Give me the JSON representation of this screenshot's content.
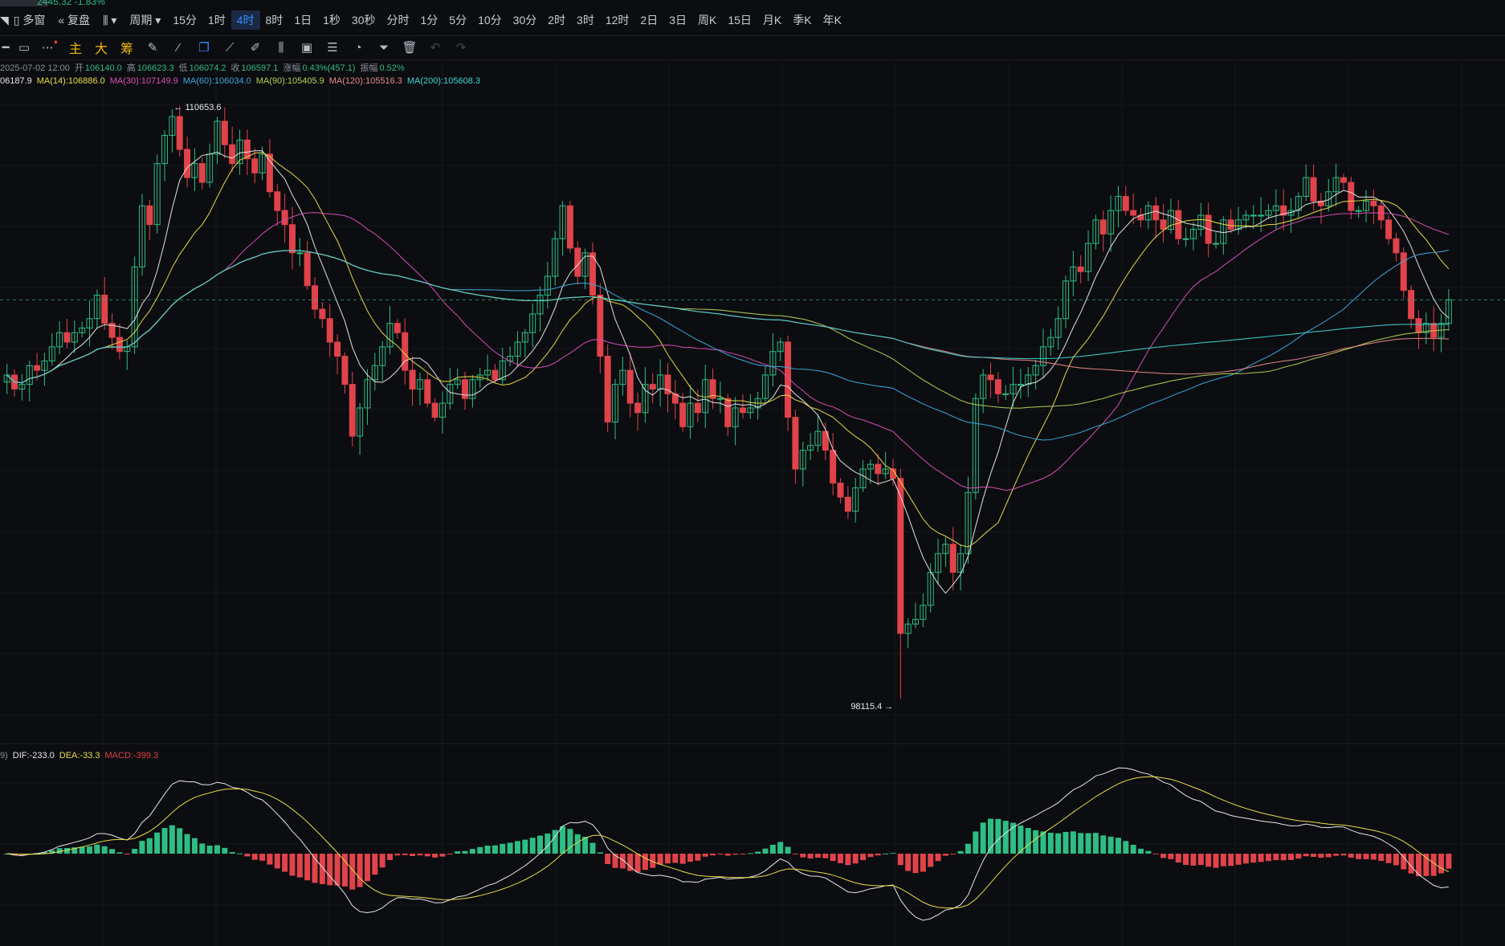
{
  "top": {
    "stub_text": "2445.32 -1.83%",
    "btn_multi": "多窗",
    "btn_fq": "复盘",
    "btn_period": "周期",
    "timeframes": [
      "15分",
      "1时",
      "4时",
      "8时",
      "1日",
      "1秒",
      "30秒",
      "分时",
      "1分",
      "5分",
      "10分",
      "30分",
      "2时",
      "3时",
      "12时",
      "2日",
      "3日",
      "周K",
      "15日",
      "月K",
      "季K",
      "年K"
    ],
    "active": "4时"
  },
  "toolbar": {
    "zhu": "主",
    "da": "大",
    "chou": "筹"
  },
  "info": {
    "date": "2025-07-02 12:00",
    "open_label": "开",
    "open": "106140.0",
    "high_label": "高",
    "high": "106623.3",
    "low_label": "低",
    "low": "106074.2",
    "close_label": "收",
    "close": "106597.1",
    "chg_label": "涨幅",
    "chg": "0.43%(457.1)",
    "amp_label": "振幅",
    "amp": "0.52%"
  },
  "ma": {
    "ma7": "06187.9",
    "ma14": "MA(14):106886.0",
    "ma30": "MA(30):107149.9",
    "ma60": "MA(60):106034.0",
    "ma90": "MA(90):105405.9",
    "ma120": "MA(120):105516.3",
    "ma200": "MA(200):105608.3"
  },
  "macd": {
    "prefix": "9)",
    "dif": "DIF:-233.0",
    "dea": "DEA:-33.3",
    "macd": "MACD:-399.3"
  },
  "colors": {
    "up": "#2ebd85",
    "down": "#e0434a",
    "ma7": "#e6e6e6",
    "ma14": "#e8dd48",
    "ma30": "#d94fb6",
    "ma60": "#3ba7e0",
    "ma90": "#b5cf52",
    "ma120": "#e88a8a",
    "ma200": "#3fd4d4"
  },
  "chart_data": {
    "type": "candlestick",
    "high_label": "110653.6",
    "low_label": "98115.4",
    "y_range": [
      97600,
      111100
    ],
    "closes": [
      105000,
      104700,
      104800,
      105200,
      105100,
      105300,
      105600,
      105900,
      105700,
      105900,
      106000,
      106200,
      106700,
      106100,
      105800,
      105500,
      105600,
      107300,
      108600,
      108200,
      109500,
      110100,
      110500,
      109800,
      109200,
      109500,
      109100,
      109700,
      110400,
      109900,
      109500,
      110000,
      109600,
      109300,
      109700,
      108900,
      108500,
      108200,
      107600,
      107600,
      106900,
      106400,
      106200,
      105700,
      105400,
      104800,
      103700,
      104300,
      104900,
      105200,
      105600,
      106100,
      105900,
      105100,
      104700,
      104900,
      104400,
      104100,
      104400,
      104800,
      104900,
      104500,
      104900,
      105000,
      105100,
      104900,
      105300,
      105400,
      105700,
      105900,
      106300,
      106700,
      107100,
      107900,
      108600,
      107700,
      107100,
      107600,
      106700,
      105400,
      104000,
      104800,
      105100,
      104400,
      104200,
      104800,
      104700,
      105000,
      104600,
      104400,
      103900,
      104400,
      104200,
      104900,
      104500,
      104500,
      103900,
      104300,
      104200,
      104300,
      104500,
      105000,
      105500,
      105700,
      104100,
      103000,
      103400,
      103500,
      103800,
      103400,
      102700,
      102400,
      102100,
      102600,
      103000,
      103100,
      102900,
      103000,
      102800,
      99500,
      99700,
      99800,
      100100,
      100800,
      101200,
      101400,
      100800,
      101200,
      102500,
      104500,
      105000,
      104900,
      104600,
      104600,
      104800,
      104800,
      105000,
      105200,
      105600,
      105800,
      106200,
      107000,
      107300,
      107200,
      107800,
      108300,
      108000,
      108500,
      108800,
      108500,
      108400,
      108300,
      108600,
      108300,
      108100,
      108500,
      107900,
      107900,
      108100,
      108400,
      107800,
      107800,
      108300,
      108100,
      108300,
      108400,
      108400,
      108400,
      108500,
      108600,
      108400,
      108500,
      108800,
      109200,
      108700,
      108600,
      108900,
      109200,
      109100,
      108500,
      108500,
      108700,
      108600,
      108300,
      107900,
      107600,
      106800,
      106200,
      105900,
      106100,
      105800,
      106100,
      106600
    ]
  }
}
